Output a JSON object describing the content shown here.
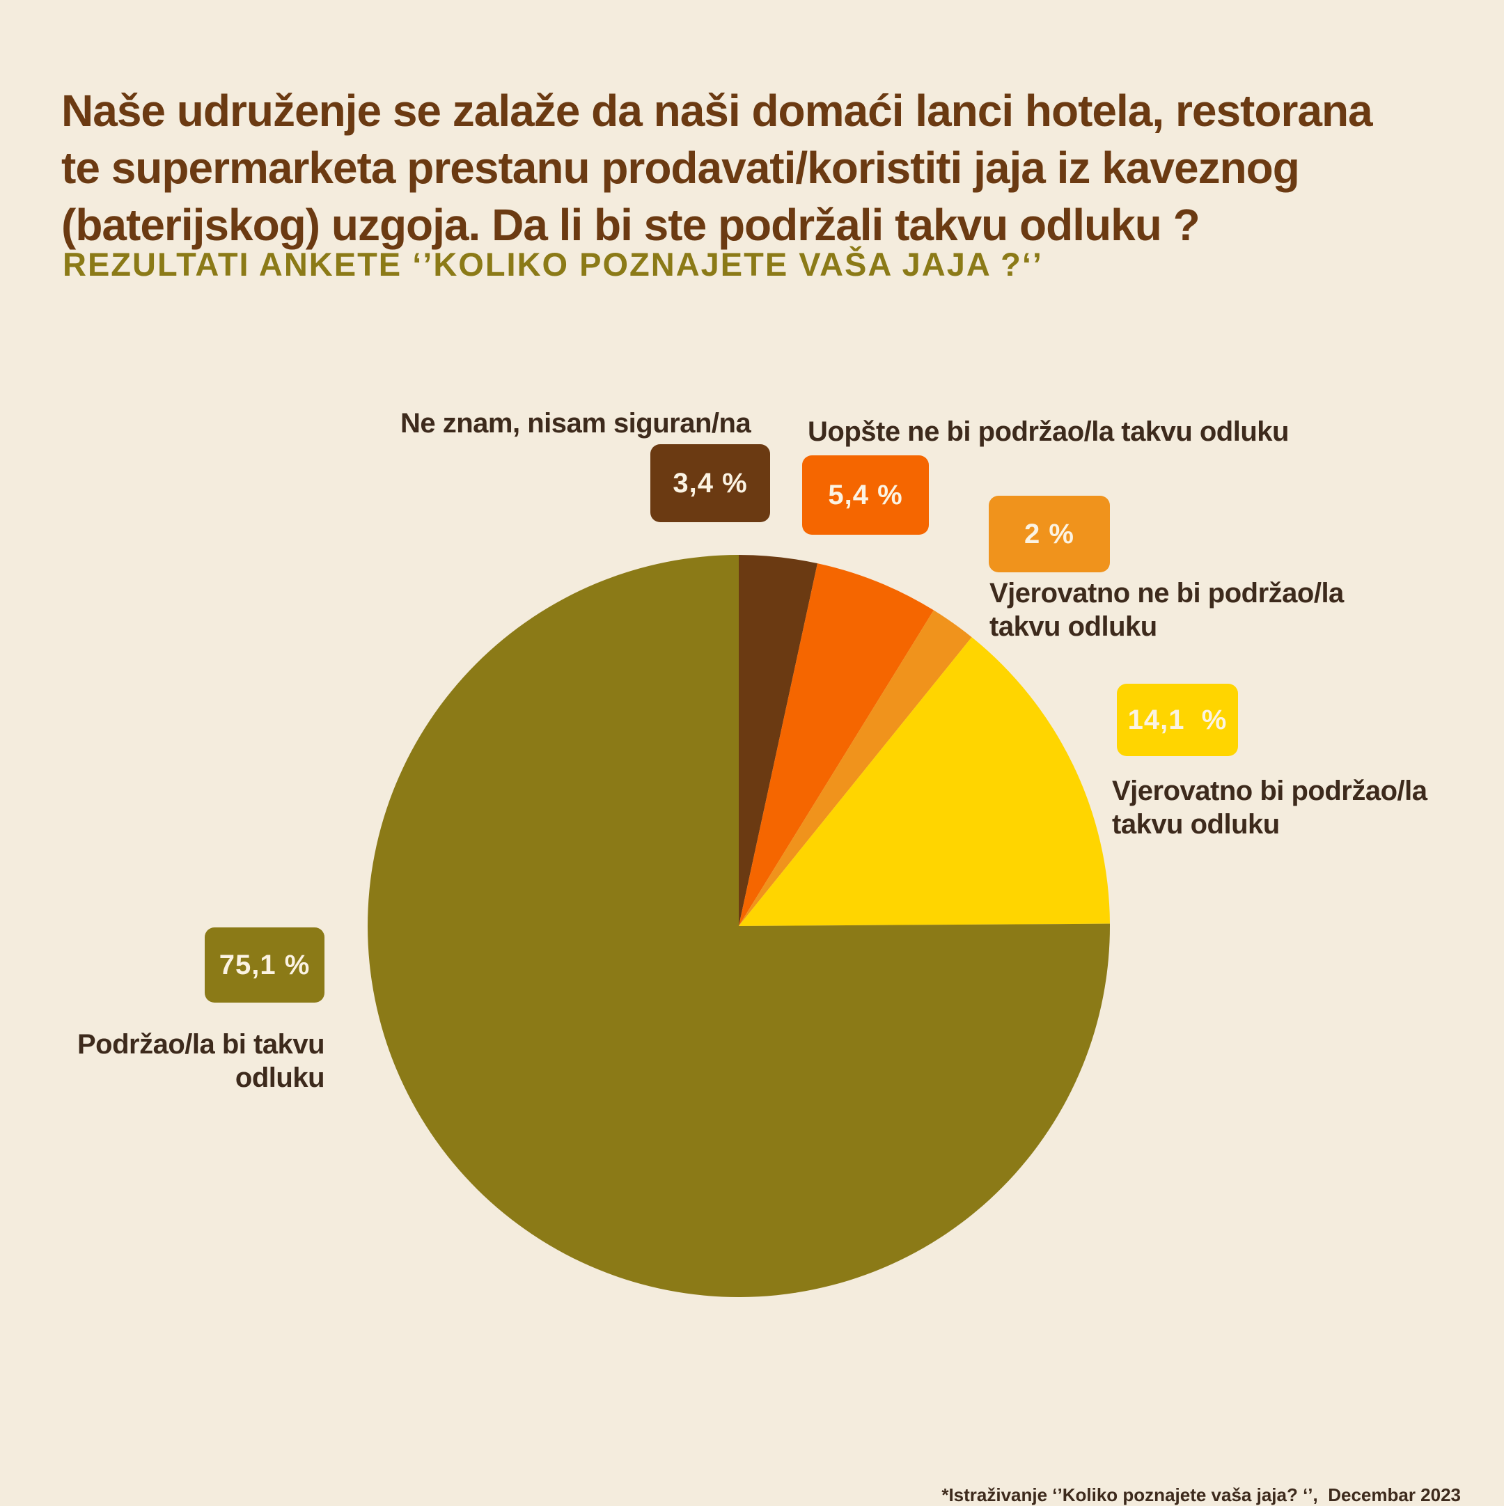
{
  "title": "Naše udruženje se zalaže da naši domaći lanci hotela, restorana\nte supermarketa prestanu prodavati/koristiti jaja iz kaveznog\n(baterijskog) uzgoja. Da li bi ste podržali takvu odluku ?",
  "subtitle": "REZULTATI ANKETE ‘’KOLIKO POZNAJETE VAŠA JAJA ?‘’",
  "footnote": "*Istraživanje ‘’Koliko poznajete vaša jaja? ‘’,  Decembar 2023",
  "chart_data": {
    "type": "pie",
    "start_angle": "top",
    "direction": "clockwise",
    "slices": [
      {
        "label": "Ne znam, nisam siguran/na",
        "value": 3.4,
        "display": "3,4 %",
        "color": "#6b3a12"
      },
      {
        "label": "Uopšte ne bi podržao/la takvu odluku",
        "value": 5.4,
        "display": "5,4 %",
        "color": "#f56600"
      },
      {
        "label": "Vjerovatno ne bi podržao/la\ntakvu odluku",
        "value": 2,
        "display": "2 %",
        "color": "#f0931c"
      },
      {
        "label": "Vjerovatno bi podržao/la\ntakvu odluku",
        "value": 14.1,
        "display": "14,1  %",
        "color": "#ffd500"
      },
      {
        "label": "Podržao/la bi takvu\nodluku",
        "value": 75.1,
        "display": "75,1 %",
        "color": "#8b7a17"
      }
    ]
  }
}
